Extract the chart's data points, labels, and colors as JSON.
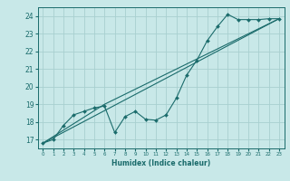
{
  "xlabel": "Humidex (Indice chaleur)",
  "ylabel": "",
  "background_color": "#c8e8e8",
  "grid_color": "#a8d0d0",
  "line_color": "#1a6b6b",
  "xlim": [
    -0.5,
    23.5
  ],
  "ylim": [
    16.5,
    24.5
  ],
  "yticks": [
    17,
    18,
    19,
    20,
    21,
    22,
    23,
    24
  ],
  "xticks": [
    0,
    1,
    2,
    3,
    4,
    5,
    6,
    7,
    8,
    9,
    10,
    11,
    12,
    13,
    14,
    15,
    16,
    17,
    18,
    19,
    20,
    21,
    22,
    23
  ],
  "series1_x": [
    0,
    1,
    2,
    3,
    4,
    5,
    6,
    7,
    8,
    9,
    10,
    11,
    12,
    13,
    14,
    15,
    16,
    17,
    18,
    19,
    20,
    21,
    22,
    23
  ],
  "series1_y": [
    16.8,
    17.0,
    17.8,
    18.4,
    18.6,
    18.8,
    18.9,
    17.4,
    18.3,
    18.6,
    18.15,
    18.1,
    18.4,
    19.35,
    20.65,
    21.5,
    22.6,
    23.4,
    24.1,
    23.8,
    23.8,
    23.8,
    23.85,
    23.85
  ],
  "series2_x": [
    0,
    23
  ],
  "series2_y": [
    16.8,
    23.85
  ],
  "series3_x": [
    0,
    6,
    23
  ],
  "series3_y": [
    16.8,
    19.0,
    23.85
  ]
}
